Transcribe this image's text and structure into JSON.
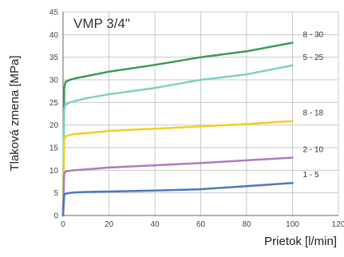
{
  "chart_data": {
    "type": "line",
    "title": "VMP 3/4\"",
    "xlabel": "Prietok [l/min]",
    "ylabel": "Tlaková zmena [MPa]",
    "xlim": [
      0,
      120
    ],
    "ylim": [
      0,
      45
    ],
    "xticks": [
      0,
      20,
      40,
      60,
      80,
      100,
      120
    ],
    "yticks": [
      0,
      5,
      10,
      15,
      20,
      25,
      30,
      35,
      40,
      45
    ],
    "grid": true,
    "series": [
      {
        "name": "8 - 30",
        "color": "#3a9a55",
        "x": [
          0,
          0.5,
          1,
          3,
          5,
          10,
          20,
          40,
          60,
          80,
          100
        ],
        "y": [
          0,
          28,
          29.5,
          30,
          30.3,
          30.8,
          31.8,
          33.3,
          35,
          36.3,
          38.2
        ]
      },
      {
        "name": "5 - 25",
        "color": "#7fcfc4",
        "x": [
          0,
          0.5,
          1,
          3,
          5,
          10,
          20,
          40,
          60,
          80,
          100
        ],
        "y": [
          0,
          23.5,
          24.5,
          25,
          25.3,
          25.9,
          26.8,
          28.2,
          30,
          31.2,
          33.2
        ]
      },
      {
        "name": "8 - 18",
        "color": "#f0d020",
        "x": [
          0,
          0.5,
          1,
          3,
          5,
          10,
          20,
          40,
          60,
          80,
          100
        ],
        "y": [
          0,
          16.5,
          17.5,
          17.8,
          18,
          18.2,
          18.7,
          19.2,
          19.7,
          20.2,
          20.9
        ]
      },
      {
        "name": "2 - 10",
        "color": "#b07ac0",
        "x": [
          0,
          0.5,
          1,
          3,
          5,
          10,
          20,
          40,
          60,
          80,
          100
        ],
        "y": [
          0,
          9.2,
          9.7,
          9.9,
          10,
          10.2,
          10.6,
          11.1,
          11.6,
          12.2,
          12.8
        ]
      },
      {
        "name": "1 - 5",
        "color": "#4a78c0",
        "x": [
          0,
          0.5,
          1,
          3,
          5,
          10,
          20,
          40,
          60,
          80,
          100
        ],
        "y": [
          0,
          4.5,
          4.8,
          5,
          5.1,
          5.2,
          5.3,
          5.5,
          5.8,
          6.5,
          7.2
        ]
      }
    ]
  }
}
